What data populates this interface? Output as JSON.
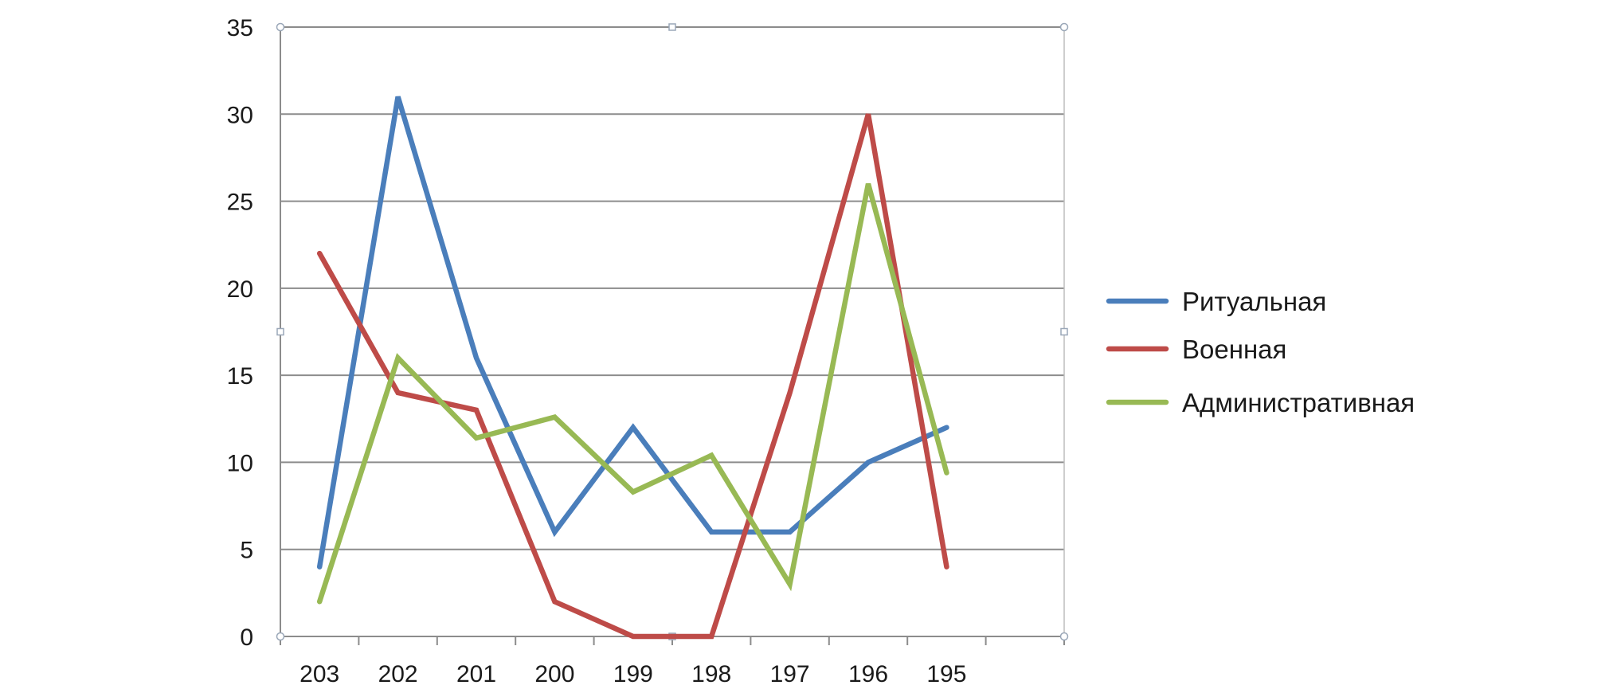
{
  "chart_data": {
    "type": "line",
    "title": "",
    "xlabel": "",
    "ylabel": "",
    "categories": [
      "203",
      "202",
      "201",
      "200",
      "199",
      "198",
      "197",
      "196",
      "195"
    ],
    "ylim": [
      0,
      35
    ],
    "yticks": [
      0,
      5,
      10,
      15,
      20,
      25,
      30,
      35
    ],
    "grid": true,
    "legend_position": "right",
    "series": [
      {
        "name": "Ритуальная",
        "color": "#4a7ebb",
        "values": [
          4,
          31,
          16,
          6,
          12,
          6,
          6,
          10,
          12
        ]
      },
      {
        "name": "Военная",
        "color": "#be4b48",
        "values": [
          22,
          14,
          13,
          2,
          0,
          0,
          14,
          30,
          4
        ]
      },
      {
        "name": "Административная",
        "color": "#98b954",
        "values": [
          2,
          16,
          11.4,
          12.6,
          8.3,
          10.4,
          3,
          26,
          9.4
        ]
      }
    ]
  }
}
